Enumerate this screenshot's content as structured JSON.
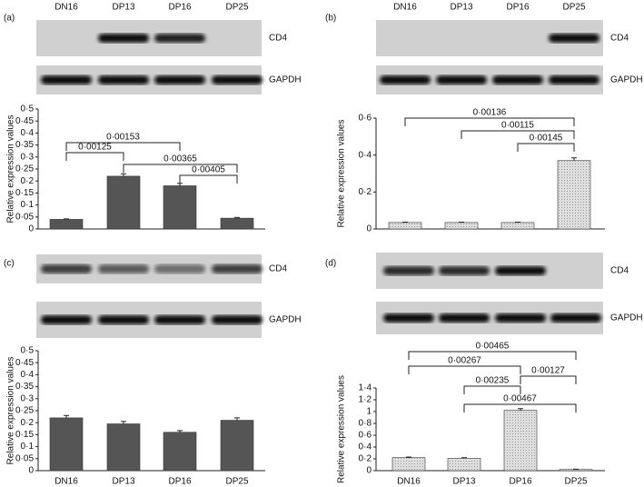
{
  "chart_data": [
    {
      "type": "bar",
      "panel": "(a)",
      "blots": [
        "CD4",
        "GAPDH"
      ],
      "ylabel": "Relative expression values",
      "categories": [
        "DN16",
        "DP13",
        "DP16",
        "DP25"
      ],
      "values": [
        0.04,
        0.22,
        0.18,
        0.045
      ],
      "errors": [
        0.002,
        0.01,
        0.01,
        0.003
      ],
      "color": "#555555",
      "ylim": [
        0,
        0.5
      ],
      "yticks": [
        0,
        {
          "value": 0.05,
          "label": "0·05"
        },
        {
          "value": 0.1,
          "label": "0·1"
        },
        {
          "value": 0.15,
          "label": "0·15"
        },
        {
          "value": 0.2,
          "label": "0·2"
        },
        {
          "value": 0.25,
          "label": "0·25"
        },
        {
          "value": 0.3,
          "label": "0·3"
        },
        {
          "value": 0.35,
          "label": "0·35"
        },
        {
          "value": 0.4,
          "label": "0·4"
        },
        {
          "value": 0.45,
          "label": "0·45"
        },
        {
          "value": 0.5,
          "label": "0·5"
        }
      ],
      "annotations": [
        "0·00153",
        "0·00125",
        "0·00365",
        "0·00405"
      ]
    },
    {
      "type": "bar",
      "panel": "(b)",
      "blots": [
        "CD4",
        "GAPDH"
      ],
      "ylabel": "Relative expression values",
      "categories": [
        "DN16",
        "DP13",
        "DP16",
        "DP25"
      ],
      "values": [
        0.035,
        0.035,
        0.035,
        0.37
      ],
      "errors": [
        0.002,
        0.002,
        0.002,
        0.015
      ],
      "color": "#dedede",
      "ylim": [
        0,
        0.6
      ],
      "yticks": [
        0,
        {
          "value": 0.2,
          "label": "0·2"
        },
        {
          "value": 0.4,
          "label": "0·4"
        },
        {
          "value": 0.6,
          "label": "0·6"
        }
      ],
      "annotations": [
        "0·00136",
        "0·00115",
        "0·00145"
      ]
    },
    {
      "type": "bar",
      "panel": "(c)",
      "blots": [
        "CD4",
        "GAPDH"
      ],
      "ylabel": "Relative expression values",
      "categories": [
        "DN16",
        "DP13",
        "DP16",
        "DP25"
      ],
      "values": [
        0.22,
        0.195,
        0.16,
        0.21
      ],
      "errors": [
        0.01,
        0.01,
        0.007,
        0.01
      ],
      "color": "#555555",
      "ylim": [
        0,
        0.5
      ],
      "yticks": [
        0,
        {
          "value": 0.05,
          "label": "0·05"
        },
        {
          "value": 0.1,
          "label": "0·1"
        },
        {
          "value": 0.15,
          "label": "0·15"
        },
        {
          "value": 0.2,
          "label": "0·2"
        },
        {
          "value": 0.25,
          "label": "0·25"
        },
        {
          "value": 0.3,
          "label": "0·3"
        },
        {
          "value": 0.35,
          "label": "0·35"
        },
        {
          "value": 0.4,
          "label": "0·4"
        },
        {
          "value": 0.45,
          "label": "0·45"
        },
        {
          "value": 0.5,
          "label": "0·5"
        }
      ],
      "annotations": []
    },
    {
      "type": "bar",
      "panel": "(d)",
      "blots": [
        "CD4",
        "GAPDH"
      ],
      "ylabel": "Relative expression values",
      "categories": [
        "DN16",
        "DP13",
        "DP16",
        "DP25"
      ],
      "values": [
        0.22,
        0.21,
        1.02,
        0.02
      ],
      "errors": [
        0.01,
        0.01,
        0.03,
        0.005
      ],
      "color": "#dedede",
      "ylim": [
        0,
        1.4
      ],
      "yticks": [
        0,
        {
          "value": 0.2,
          "label": "0·2"
        },
        {
          "value": 0.4,
          "label": "0·4"
        },
        {
          "value": 0.6,
          "label": "0·6"
        },
        {
          "value": 0.8,
          "label": "0·8"
        },
        1,
        {
          "value": 1.2,
          "label": "1·2"
        },
        {
          "value": 1.4,
          "label": "1·4"
        }
      ],
      "annotations": [
        "0·00465",
        "0·00267",
        "0·00127",
        "0·00235",
        "0·00467"
      ]
    }
  ]
}
